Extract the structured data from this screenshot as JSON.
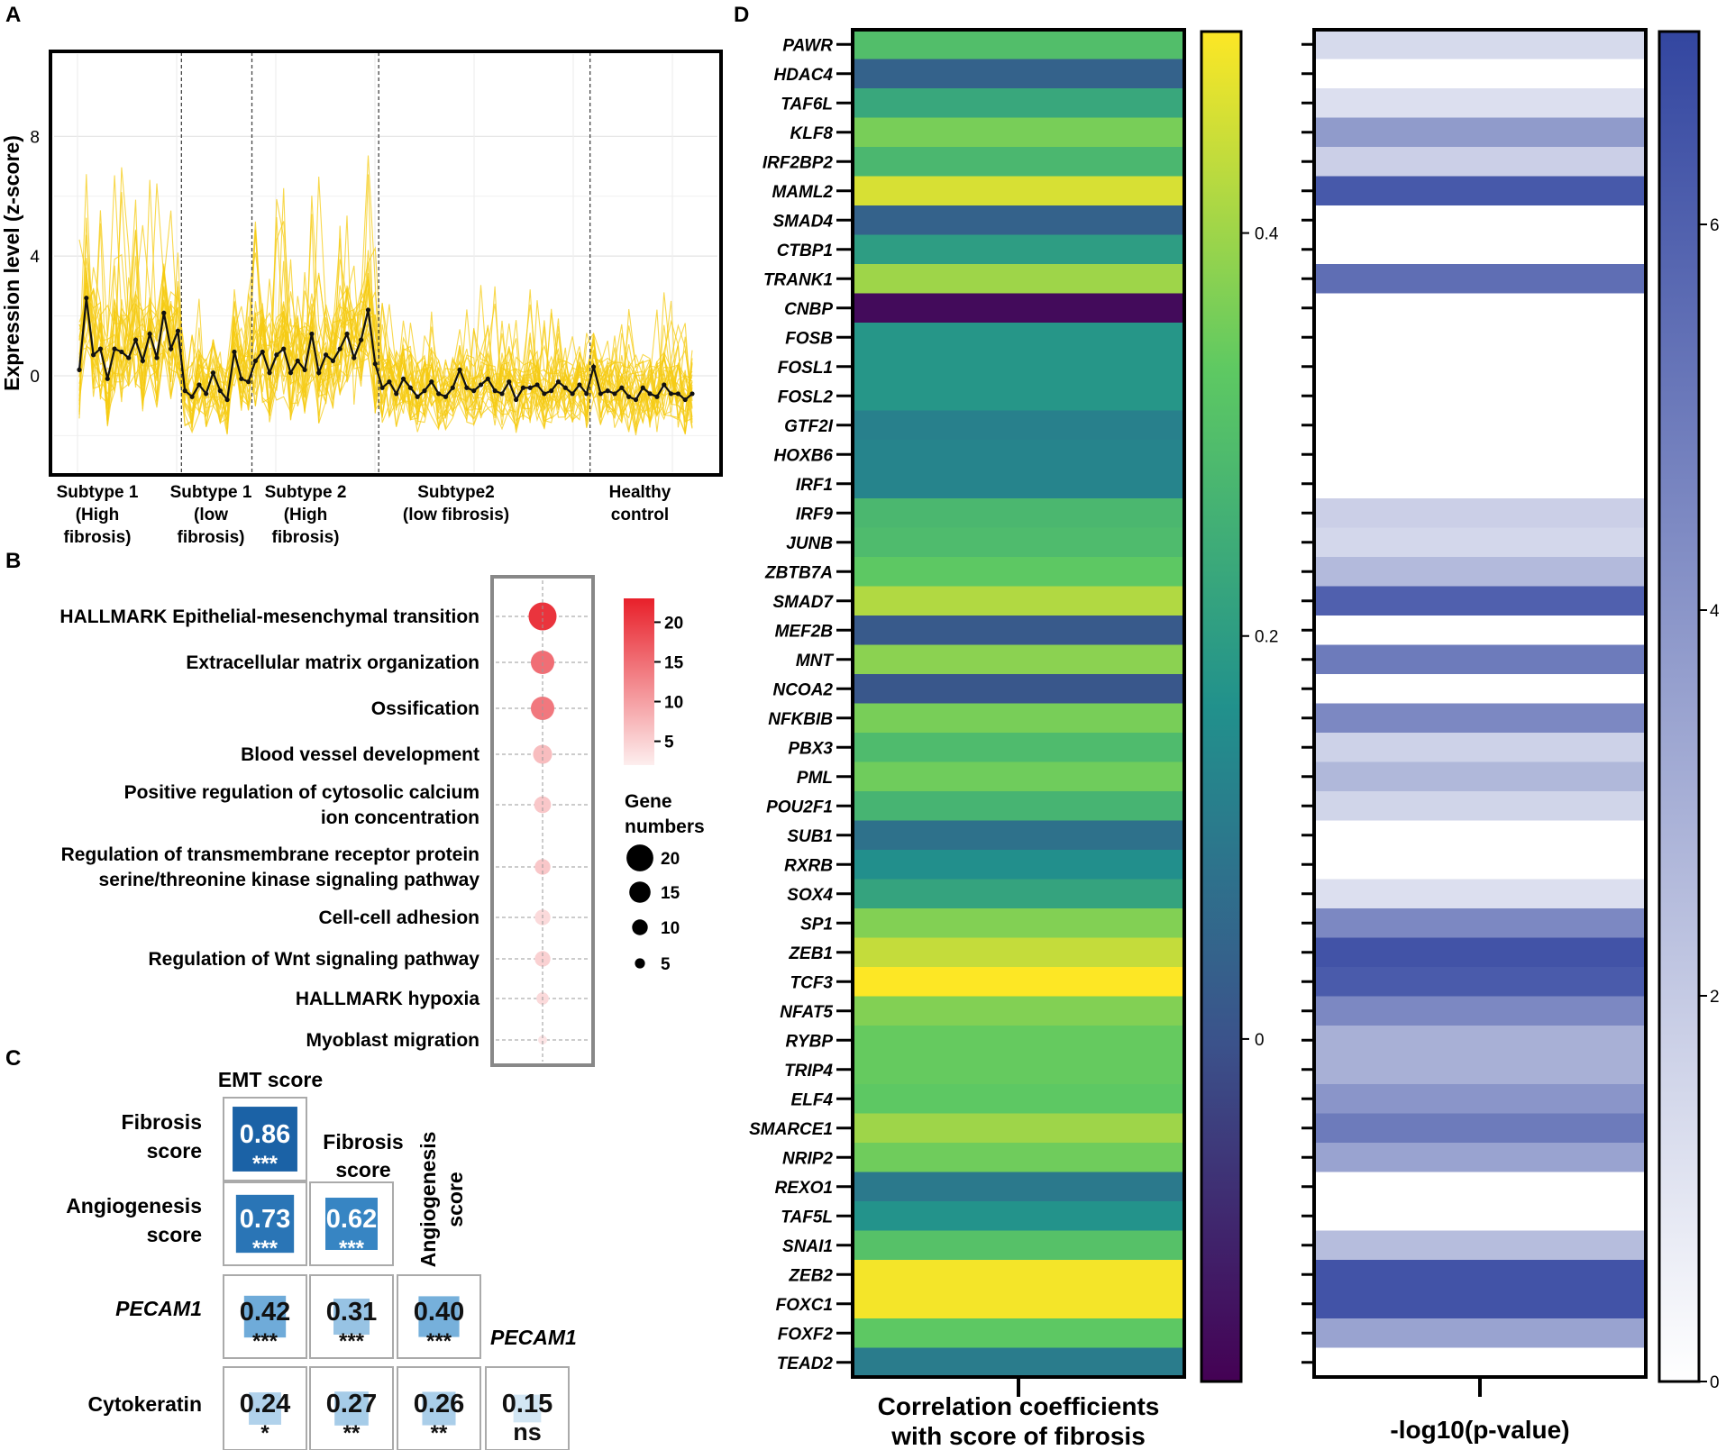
{
  "panel_letters": {
    "a": "A",
    "b": "B",
    "c": "C",
    "d": "D"
  },
  "chart_data": [
    {
      "panel": "A",
      "type": "line",
      "title": "",
      "ylabel": "Expression level (z-score)",
      "ylim": [
        -3.8,
        10.6
      ],
      "yticks": [
        0,
        4,
        8
      ],
      "groups": [
        {
          "lines": [
            "Subtype 1",
            "(High",
            "fibrosis)"
          ]
        },
        {
          "lines": [
            "Subtype 1",
            "(low",
            "fibrosis)"
          ]
        },
        {
          "lines": [
            "Subtype 2",
            "(High",
            "fibrosis)"
          ]
        },
        {
          "lines": [
            "Subtype2",
            "(low fibrosis)"
          ]
        },
        {
          "lines": [
            "Healthy",
            "control"
          ]
        }
      ],
      "mean_series": [
        0.2,
        2.6,
        0.7,
        0.9,
        -0.1,
        0.9,
        0.8,
        0.6,
        1.2,
        0.5,
        1.4,
        0.6,
        2.1,
        0.9,
        1.5,
        -0.5,
        -0.7,
        -0.3,
        -0.6,
        0.1,
        -0.5,
        -0.8,
        0.8,
        -0.1,
        -0.2,
        0.5,
        0.8,
        0.1,
        0.7,
        0.9,
        0.1,
        0.5,
        0.2,
        1.4,
        0.1,
        0.7,
        0.5,
        0.9,
        1.4,
        0.6,
        1.2,
        2.2,
        0.4,
        -0.4,
        -0.2,
        -0.6,
        -0.1,
        -0.4,
        -0.7,
        -0.5,
        -0.2,
        -0.6,
        -0.7,
        -0.4,
        0.2,
        -0.4,
        -0.5,
        -0.3,
        -0.1,
        -0.5,
        -0.6,
        -0.2,
        -0.8,
        -0.4,
        -0.4,
        -0.3,
        -0.6,
        -0.5,
        -0.2,
        -0.4,
        -0.6,
        -0.3,
        -0.6,
        0.3,
        -0.6,
        -0.5,
        -0.6,
        -0.4,
        -0.7,
        -0.8,
        -0.4,
        -0.6,
        -0.7,
        -0.3,
        -0.6,
        -0.6,
        -0.8,
        -0.6
      ]
    },
    {
      "panel": "B",
      "type": "scatter",
      "terms": [
        {
          "lines": [
            "HALLMARK Epithelial-mesenchymal transition"
          ],
          "count": 21,
          "value": 21
        },
        {
          "lines": [
            "Extracellular matrix organization"
          ],
          "count": 17,
          "value": 15
        },
        {
          "lines": [
            "Ossification"
          ],
          "count": 17,
          "value": 14
        },
        {
          "lines": [
            "Blood vessel development"
          ],
          "count": 13,
          "value": 7
        },
        {
          "lines": [
            "Positive regulation of cytosolic calcium",
            "ion concentration"
          ],
          "count": 11,
          "value": 6
        },
        {
          "lines": [
            "Regulation of transmembrane receptor protein",
            "serine/threonine kinase signaling pathway"
          ],
          "count": 10,
          "value": 6
        },
        {
          "lines": [
            "Cell-cell adhesion"
          ],
          "count": 10,
          "value": 4
        },
        {
          "lines": [
            "Regulation of Wnt signaling pathway"
          ],
          "count": 10,
          "value": 5
        },
        {
          "lines": [
            "HALLMARK hypoxia"
          ],
          "count": 7,
          "value": 4
        },
        {
          "lines": [
            "Myoblast migration"
          ],
          "count": 4,
          "value": 3
        }
      ],
      "color_scale": {
        "min": 2,
        "max": 23,
        "ticks": [
          20,
          15,
          10,
          5
        ],
        "low": "#fdeeee",
        "high": "#e8202a"
      },
      "size_legend": {
        "title_lines": [
          "Gene",
          "numbers"
        ],
        "values": [
          20,
          15,
          10,
          5
        ]
      }
    },
    {
      "panel": "C",
      "type": "heatmap",
      "col_headers": [
        "EMT score",
        "Fibrosis score",
        "Angiogenesis score",
        "PECAM1"
      ],
      "row_labels": [
        {
          "lines": [
            "Fibrosis",
            "score"
          ],
          "italic": false
        },
        {
          "lines": [
            "Angiogenesis",
            "score"
          ],
          "italic": false
        },
        {
          "lines": [
            "PECAM1"
          ],
          "italic": true
        },
        {
          "lines": [
            "Cytokeratin"
          ],
          "italic": false
        }
      ],
      "cells": [
        [
          {
            "value": "0.86",
            "sig": "***"
          }
        ],
        [
          {
            "value": "0.73",
            "sig": "***"
          },
          {
            "value": "0.62",
            "sig": "***"
          }
        ],
        [
          {
            "value": "0.42",
            "sig": "***"
          },
          {
            "value": "0.31",
            "sig": "***"
          },
          {
            "value": "0.40",
            "sig": "***"
          }
        ],
        [
          {
            "value": "0.24",
            "sig": "*"
          },
          {
            "value": "0.27",
            "sig": "**"
          },
          {
            "value": "0.26",
            "sig": "**"
          },
          {
            "value": "0.15",
            "sig": "ns"
          }
        ]
      ]
    },
    {
      "panel": "D",
      "type": "heatmap",
      "genes": [
        "PAWR",
        "HDAC4",
        "TAF6L",
        "KLF8",
        "IRF2BP2",
        "MAML2",
        "SMAD4",
        "CTBP1",
        "TRANK1",
        "CNBP",
        "FOSB",
        "FOSL1",
        "FOSL2",
        "GTF2I",
        "HOXB6",
        "IRF1",
        "IRF9",
        "JUNB",
        "ZBTB7A",
        "SMAD7",
        "MEF2B",
        "MNT",
        "NCOA2",
        "NFKBIB",
        "PBX3",
        "PML",
        "POU2F1",
        "SUB1",
        "RXRB",
        "SOX4",
        "SP1",
        "ZEB1",
        "TCF3",
        "NFAT5",
        "RYBP",
        "TRIP4",
        "ELF4",
        "SMARCE1",
        "NRIP2",
        "REXO1",
        "TAF5L",
        "SNAI1",
        "ZEB2",
        "FOXC1",
        "FOXF2",
        "TEAD2"
      ],
      "correlation": [
        0.3,
        0.04,
        0.23,
        0.36,
        0.28,
        0.46,
        0.04,
        0.2,
        0.4,
        -0.15,
        0.18,
        0.18,
        0.18,
        0.12,
        0.13,
        0.13,
        0.28,
        0.29,
        0.33,
        0.42,
        0.02,
        0.38,
        0.01,
        0.36,
        0.29,
        0.35,
        0.27,
        0.08,
        0.16,
        0.22,
        0.37,
        0.44,
        0.5,
        0.37,
        0.34,
        0.34,
        0.33,
        0.4,
        0.35,
        0.1,
        0.17,
        0.31,
        0.49,
        0.49,
        0.33,
        0.11
      ],
      "neg_log10_p": [
        1.4,
        0,
        1.2,
        3.8,
        1.8,
        6.3,
        0,
        0,
        5.5,
        0,
        0,
        0,
        0,
        0,
        0,
        0,
        1.8,
        1.5,
        2.6,
        6.0,
        0,
        5.0,
        0,
        4.5,
        1.7,
        2.7,
        1.6,
        0,
        0,
        1.2,
        4.5,
        6.5,
        6.2,
        4.5,
        3.0,
        3.0,
        4.0,
        5.0,
        3.5,
        0,
        0,
        2.5,
        6.5,
        6.5,
        3.5,
        0
      ],
      "corr_colorbar": {
        "min": -0.17,
        "max": 0.5,
        "ticks": [
          0,
          0.2,
          0.4
        ],
        "tick_labels": [
          "0",
          "0.2",
          "0.4"
        ]
      },
      "p_colorbar": {
        "min": 0,
        "max": 7,
        "ticks": [
          0,
          2,
          4,
          6
        ],
        "tick_labels": [
          "0",
          "2",
          "4",
          "6"
        ]
      },
      "corr_xlabel_lines": [
        "Correlation coefficients",
        "with score of fibrosis"
      ],
      "p_xlabel": "-log10(p-value)"
    }
  ]
}
